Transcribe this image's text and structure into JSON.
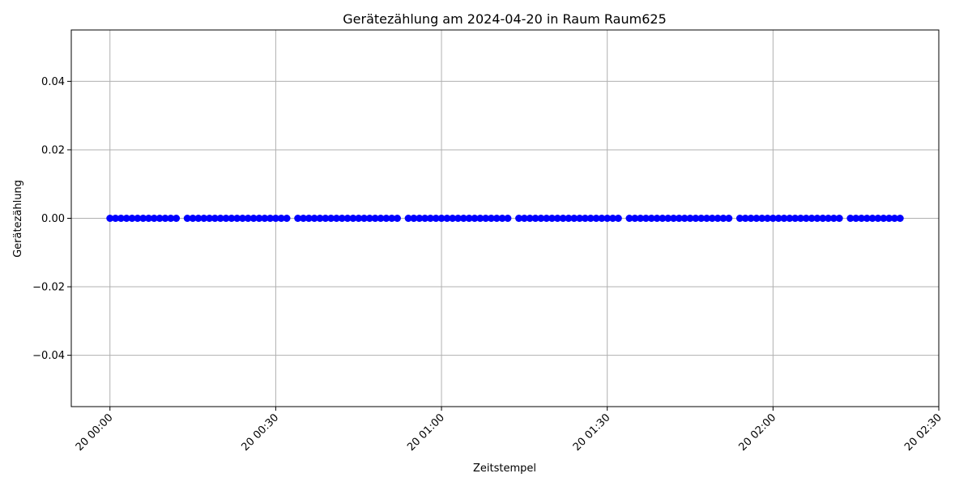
{
  "chart_data": {
    "type": "line",
    "title": "Gerätezählung am 2024-04-20 in Raum Raum625",
    "xlabel": "Zeitstempel",
    "ylabel": "Gerätezählung",
    "x_unit": "time (HH:MM on 2024-04-20)",
    "xlim": [
      "00:00",
      "02:30"
    ],
    "ylim": [
      -0.055,
      0.055
    ],
    "x_tick_labels": [
      "20 00:00",
      "20 00:30",
      "20 01:00",
      "20 01:30",
      "20 02:00",
      "20 02:30"
    ],
    "y_tick_labels": [
      "−0.04",
      "−0.02",
      "0.00",
      "0.02",
      "0.04"
    ],
    "grid": true,
    "series": [
      {
        "color": "#0000ff",
        "marker": "circle",
        "segments": [
          {
            "x": [
              "00:00",
              "00:01",
              "00:02",
              "00:03",
              "00:04",
              "00:05",
              "00:06",
              "00:07",
              "00:08",
              "00:09",
              "00:10",
              "00:11",
              "00:12"
            ],
            "y": [
              0,
              0,
              0,
              0,
              0,
              0,
              0,
              0,
              0,
              0,
              0,
              0,
              0
            ]
          },
          {
            "x": [
              "00:14",
              "00:15",
              "00:16",
              "00:17",
              "00:18",
              "00:19",
              "00:20",
              "00:21",
              "00:22",
              "00:23",
              "00:24",
              "00:25",
              "00:26",
              "00:27",
              "00:28",
              "00:29",
              "00:30",
              "00:31",
              "00:32"
            ],
            "y": [
              0,
              0,
              0,
              0,
              0,
              0,
              0,
              0,
              0,
              0,
              0,
              0,
              0,
              0,
              0,
              0,
              0,
              0,
              0
            ]
          },
          {
            "x": [
              "00:34",
              "00:35",
              "00:36",
              "00:37",
              "00:38",
              "00:39",
              "00:40",
              "00:41",
              "00:42",
              "00:43",
              "00:44",
              "00:45",
              "00:46",
              "00:47",
              "00:48",
              "00:49",
              "00:50",
              "00:51",
              "00:52"
            ],
            "y": [
              0,
              0,
              0,
              0,
              0,
              0,
              0,
              0,
              0,
              0,
              0,
              0,
              0,
              0,
              0,
              0,
              0,
              0,
              0
            ]
          },
          {
            "x": [
              "00:54",
              "00:55",
              "00:56",
              "00:57",
              "00:58",
              "00:59",
              "01:00",
              "01:01",
              "01:02",
              "01:03",
              "01:04",
              "01:05",
              "01:06",
              "01:07",
              "01:08",
              "01:09",
              "01:10",
              "01:11",
              "01:12"
            ],
            "y": [
              0,
              0,
              0,
              0,
              0,
              0,
              0,
              0,
              0,
              0,
              0,
              0,
              0,
              0,
              0,
              0,
              0,
              0,
              0
            ]
          },
          {
            "x": [
              "01:14",
              "01:15",
              "01:16",
              "01:17",
              "01:18",
              "01:19",
              "01:20",
              "01:21",
              "01:22",
              "01:23",
              "01:24",
              "01:25",
              "01:26",
              "01:27",
              "01:28",
              "01:29",
              "01:30",
              "01:31",
              "01:32"
            ],
            "y": [
              0,
              0,
              0,
              0,
              0,
              0,
              0,
              0,
              0,
              0,
              0,
              0,
              0,
              0,
              0,
              0,
              0,
              0,
              0
            ]
          },
          {
            "x": [
              "01:34",
              "01:35",
              "01:36",
              "01:37",
              "01:38",
              "01:39",
              "01:40",
              "01:41",
              "01:42",
              "01:43",
              "01:44",
              "01:45",
              "01:46",
              "01:47",
              "01:48",
              "01:49",
              "01:50",
              "01:51",
              "01:52"
            ],
            "y": [
              0,
              0,
              0,
              0,
              0,
              0,
              0,
              0,
              0,
              0,
              0,
              0,
              0,
              0,
              0,
              0,
              0,
              0,
              0
            ]
          },
          {
            "x": [
              "01:54",
              "01:55",
              "01:56",
              "01:57",
              "01:58",
              "01:59",
              "02:00",
              "02:01",
              "02:02",
              "02:03",
              "02:04",
              "02:05",
              "02:06",
              "02:07",
              "02:08",
              "02:09",
              "02:10",
              "02:11",
              "02:12"
            ],
            "y": [
              0,
              0,
              0,
              0,
              0,
              0,
              0,
              0,
              0,
              0,
              0,
              0,
              0,
              0,
              0,
              0,
              0,
              0,
              0
            ]
          },
          {
            "x": [
              "02:14",
              "02:15",
              "02:16",
              "02:17",
              "02:18",
              "02:19",
              "02:20",
              "02:21",
              "02:22",
              "02:23"
            ],
            "y": [
              0,
              0,
              0,
              0,
              0,
              0,
              0,
              0,
              0,
              0
            ]
          }
        ]
      }
    ]
  }
}
